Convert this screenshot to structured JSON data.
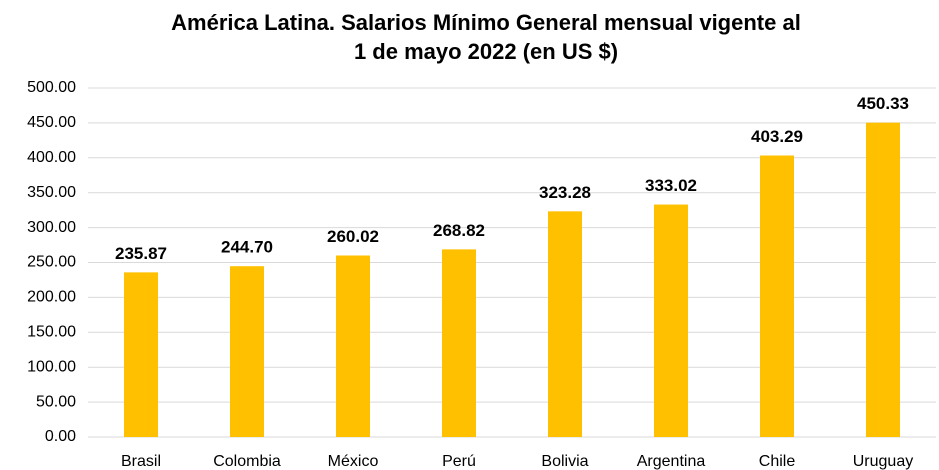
{
  "chart_data": {
    "type": "bar",
    "title": [
      "América Latina. Salarios Mínimo General mensual vigente al",
      "1 de mayo 2022 (en US $)"
    ],
    "categories": [
      "Brasil",
      "Colombia",
      "México",
      "Perú",
      "Bolivia",
      "Argentina",
      "Chile",
      "Uruguay"
    ],
    "values": [
      235.87,
      244.7,
      260.02,
      268.82,
      323.28,
      333.02,
      403.29,
      450.33
    ],
    "value_labels": [
      "235.87",
      "244.70",
      "260.02",
      "268.82",
      "323.28",
      "333.02",
      "403.29",
      "450.33"
    ],
    "color": "#ffc000",
    "ylim": [
      0,
      500
    ],
    "yticks": [
      {
        "value": 0,
        "label": "0.00"
      },
      {
        "value": 50,
        "label": "50.00"
      },
      {
        "value": 100,
        "label": "100.00"
      },
      {
        "value": 150,
        "label": "150.00"
      },
      {
        "value": 200,
        "label": "200.00"
      },
      {
        "value": 250,
        "label": "250.00"
      },
      {
        "value": 300,
        "label": "300.00"
      },
      {
        "value": 350,
        "label": "350.00"
      },
      {
        "value": 400,
        "label": "400.00"
      },
      {
        "value": 450,
        "label": "450.00"
      },
      {
        "value": 500,
        "label": "500.00"
      }
    ],
    "grid": true
  }
}
